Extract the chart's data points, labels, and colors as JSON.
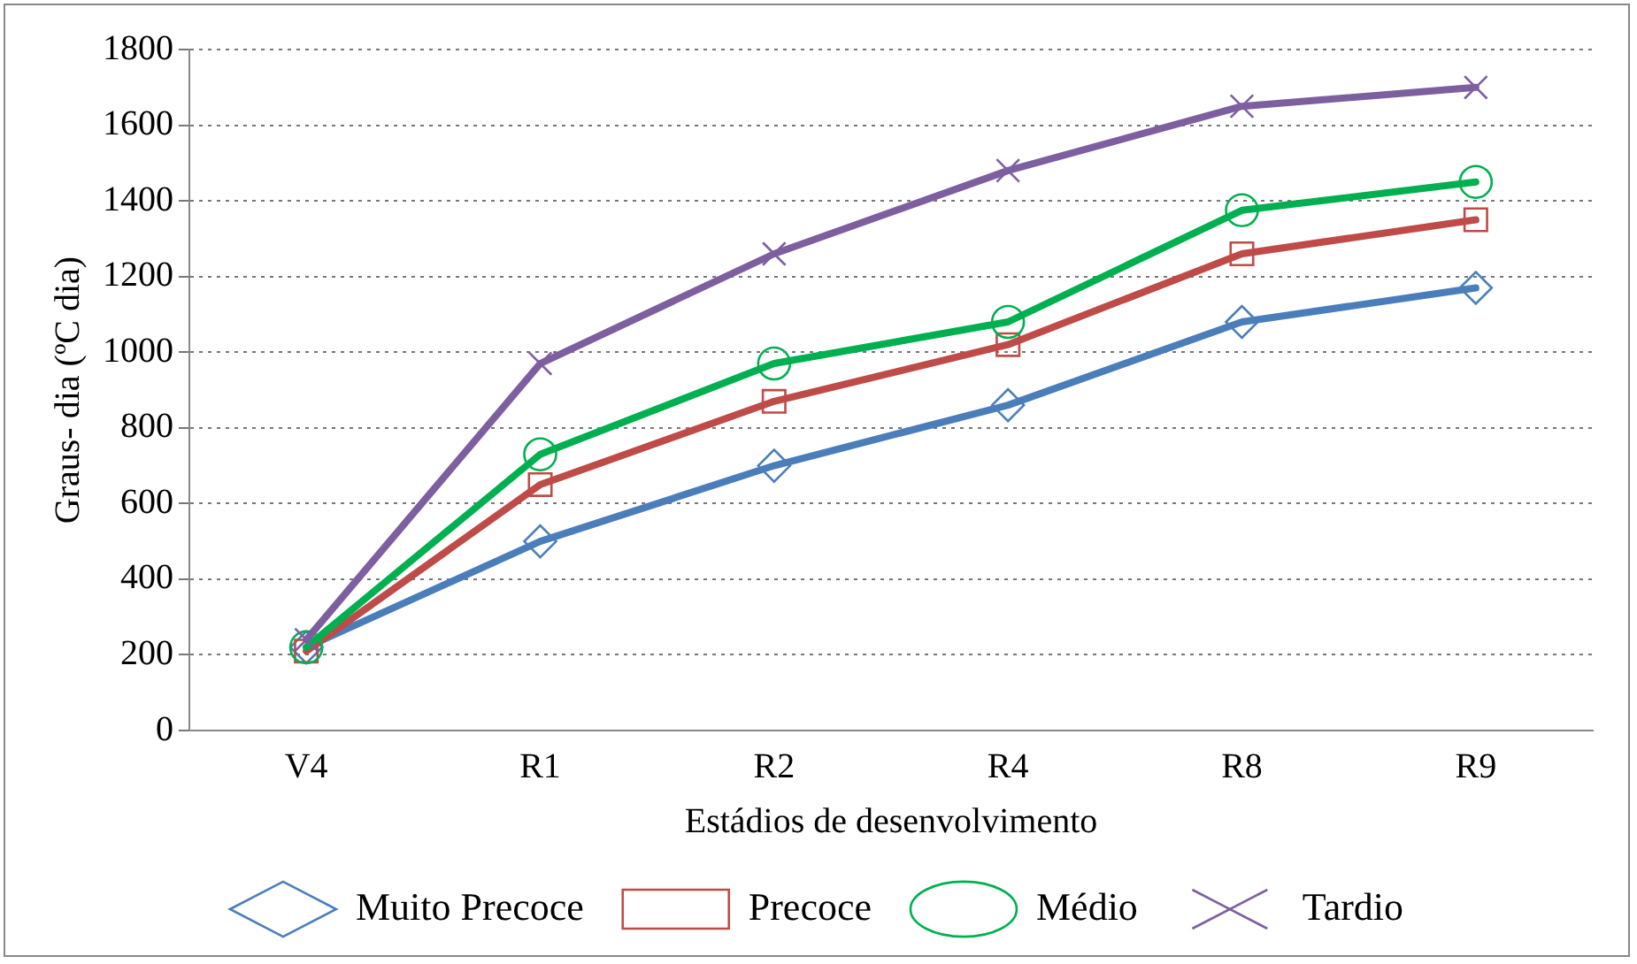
{
  "chart_data": {
    "type": "line",
    "xlabel": "Estádios de desenvolvimento",
    "ylabel": "Graus- dia (ºC dia)",
    "categories": [
      "V4",
      "R1",
      "R2",
      "R4",
      "R8",
      "R9"
    ],
    "series": [
      {
        "name": "Muito Precoce",
        "color": "#4a7ebb",
        "marker": "diamond",
        "values": [
          220,
          500,
          700,
          860,
          1080,
          1170
        ]
      },
      {
        "name": "Precoce",
        "color": "#be4b48",
        "marker": "square",
        "values": [
          210,
          650,
          870,
          1020,
          1260,
          1350
        ]
      },
      {
        "name": "Médio",
        "color": "#00b050",
        "marker": "circle",
        "values": [
          220,
          730,
          970,
          1080,
          1375,
          1450
        ]
      },
      {
        "name": "Tardio",
        "color": "#7d5fa0",
        "marker": "cross",
        "values": [
          240,
          970,
          1260,
          1480,
          1650,
          1700
        ]
      }
    ],
    "ylim": [
      0,
      1800
    ],
    "yticks": [
      0,
      200,
      400,
      600,
      800,
      1000,
      1200,
      1400,
      1600,
      1800
    ],
    "grid": "y",
    "legend": "bottom",
    "line_style": "solid"
  }
}
